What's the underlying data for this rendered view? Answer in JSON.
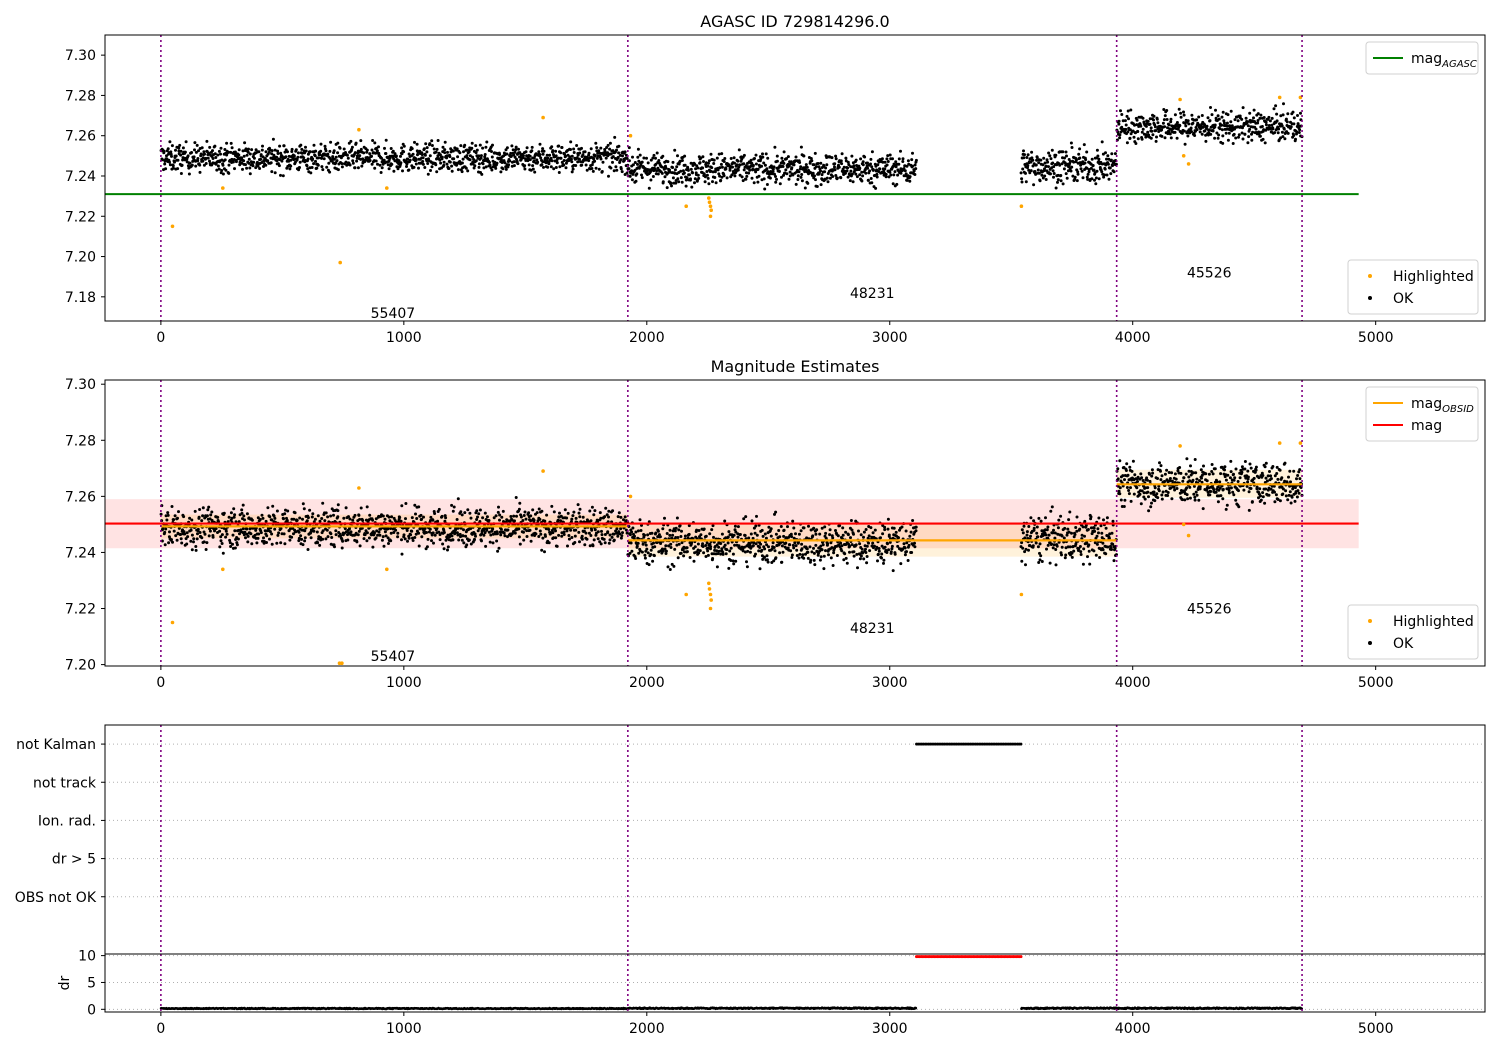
{
  "figure": {
    "background": "#ffffff"
  },
  "colors": {
    "ok": "#000000",
    "highlighted": "#ffa500",
    "mag_agasc": "#008000",
    "mag": "#ff0000",
    "mag_obsid": "#ffa500",
    "obs_boundary": "#800080",
    "dr_flagged": "#ff0000"
  },
  "chart_data": [
    {
      "type": "scatter",
      "title": "AGASC ID 729814296.0",
      "xlim": [
        -230,
        5450
      ],
      "ylim": [
        7.168,
        7.31
      ],
      "xticks": [
        "0",
        "1000",
        "2000",
        "3000",
        "4000",
        "5000"
      ],
      "yticks": [
        "7.18",
        "7.20",
        "7.22",
        "7.24",
        "7.26",
        "7.28",
        "7.30"
      ],
      "observation_boundaries": [
        0,
        1922,
        3934,
        4697
      ],
      "observation_labels": [
        {
          "text": "55407",
          "x": 955,
          "y": 7.172
        },
        {
          "text": "48231",
          "x": 2928,
          "y": 7.182
        },
        {
          "text": "45526",
          "x": 4315,
          "y": 7.192
        }
      ],
      "ok_segments": [
        {
          "x": [
            0,
            1922
          ],
          "mean": 7.249,
          "spread": 0.005
        },
        {
          "x": [
            1922,
            3110
          ],
          "mean": 7.2435,
          "spread": 0.0055
        },
        {
          "x": [
            3540,
            3934
          ],
          "mean": 7.245,
          "spread": 0.006
        },
        {
          "x": [
            3934,
            4697
          ],
          "mean": 7.2645,
          "spread": 0.0055
        }
      ],
      "highlighted_points": [
        [
          48,
          7.215
        ],
        [
          255,
          7.234
        ],
        [
          738,
          7.197
        ],
        [
          815,
          7.263
        ],
        [
          930,
          7.234
        ],
        [
          1573,
          7.269
        ],
        [
          1933,
          7.26
        ],
        [
          2162,
          7.225
        ],
        [
          2255,
          7.229
        ],
        [
          2258,
          7.227
        ],
        [
          2262,
          7.225
        ],
        [
          2265,
          7.223
        ],
        [
          2262,
          7.22
        ],
        [
          3542,
          7.225
        ],
        [
          4195,
          7.278
        ],
        [
          4210,
          7.25
        ],
        [
          4230,
          7.246
        ],
        [
          4605,
          7.279
        ],
        [
          4690,
          7.279
        ]
      ],
      "lines": [
        {
          "name": "mag_AGASC",
          "y": 7.231,
          "x": [
            -230,
            4930
          ],
          "color": "#008000"
        }
      ],
      "legends": [
        {
          "placement": "top-right",
          "entries": [
            {
              "label": "mag",
              "sub": "AGASC",
              "kind": "line",
              "color": "#008000"
            }
          ]
        },
        {
          "placement": "bottom-right",
          "entries": [
            {
              "label": "Highlighted",
              "kind": "dot",
              "color": "#ffa500"
            },
            {
              "label": "OK",
              "kind": "dot",
              "color": "#000000"
            }
          ]
        }
      ]
    },
    {
      "type": "scatter",
      "title": "Magnitude Estimates",
      "xlim": [
        -230,
        5450
      ],
      "ylim": [
        7.1995,
        7.3015
      ],
      "xticks": [
        "0",
        "1000",
        "2000",
        "3000",
        "4000",
        "5000"
      ],
      "yticks": [
        "7.20",
        "7.22",
        "7.24",
        "7.26",
        "7.28",
        "7.30"
      ],
      "observation_boundaries": [
        0,
        1922,
        3934,
        4697
      ],
      "observation_labels": [
        {
          "text": "55407",
          "x": 955,
          "y": 7.203
        },
        {
          "text": "48231",
          "x": 2928,
          "y": 7.213
        },
        {
          "text": "45526",
          "x": 4315,
          "y": 7.22
        }
      ],
      "ok_segments": [
        {
          "x": [
            0,
            1922
          ],
          "mean": 7.249,
          "spread": 0.005
        },
        {
          "x": [
            1922,
            3110
          ],
          "mean": 7.2435,
          "spread": 0.0055
        },
        {
          "x": [
            3540,
            3934
          ],
          "mean": 7.245,
          "spread": 0.006
        },
        {
          "x": [
            3934,
            4697
          ],
          "mean": 7.2645,
          "spread": 0.0055
        }
      ],
      "highlighted_points": [
        [
          48,
          7.215
        ],
        [
          255,
          7.234
        ],
        [
          735,
          7.2005
        ],
        [
          745,
          7.2005
        ],
        [
          815,
          7.263
        ],
        [
          930,
          7.234
        ],
        [
          1573,
          7.269
        ],
        [
          1933,
          7.26
        ],
        [
          2162,
          7.225
        ],
        [
          2255,
          7.229
        ],
        [
          2258,
          7.227
        ],
        [
          2262,
          7.225
        ],
        [
          2265,
          7.223
        ],
        [
          2262,
          7.22
        ],
        [
          3542,
          7.225
        ],
        [
          4195,
          7.278
        ],
        [
          4210,
          7.25
        ],
        [
          4230,
          7.246
        ],
        [
          4605,
          7.279
        ],
        [
          4690,
          7.279
        ]
      ],
      "bands": [
        {
          "x": [
            -230,
            4930
          ],
          "y": [
            7.2415,
            7.259
          ],
          "color": "#ff0000",
          "opacity": 0.11
        },
        {
          "x": [
            0,
            1922
          ],
          "y": [
            7.245,
            7.2535
          ],
          "color": "#ffa500",
          "opacity": 0.14
        },
        {
          "x": [
            1922,
            3934
          ],
          "y": [
            7.2385,
            7.2505
          ],
          "color": "#ffa500",
          "opacity": 0.14
        },
        {
          "x": [
            3934,
            4697
          ],
          "y": [
            7.2595,
            7.2695
          ],
          "color": "#ffa500",
          "opacity": 0.14
        }
      ],
      "lines": [
        {
          "name": "mag",
          "y": 7.2503,
          "x": [
            -230,
            4930
          ],
          "color": "#ff0000"
        },
        {
          "name": "mag_OBSID",
          "y": 7.2493,
          "x": [
            0,
            1922
          ],
          "color": "#ffa500"
        },
        {
          "name": "mag_OBSID",
          "y": 7.2443,
          "x": [
            1922,
            3934
          ],
          "color": "#ffa500"
        },
        {
          "name": "mag_OBSID",
          "y": 7.2643,
          "x": [
            3934,
            4697
          ],
          "color": "#ffa500"
        }
      ],
      "legends": [
        {
          "placement": "top-right",
          "entries": [
            {
              "label": "mag",
              "sub": "OBSID",
              "kind": "line",
              "color": "#ffa500"
            },
            {
              "label": "mag",
              "kind": "line",
              "color": "#ff0000"
            }
          ]
        },
        {
          "placement": "bottom-right",
          "entries": [
            {
              "label": "Highlighted",
              "kind": "dot",
              "color": "#ffa500"
            },
            {
              "label": "OK",
              "kind": "dot",
              "color": "#000000"
            }
          ]
        }
      ]
    },
    {
      "type": "scatter",
      "title": "",
      "xlim": [
        -230,
        5450
      ],
      "ylim": [
        -0.5,
        5.5
      ],
      "xticks": [],
      "yticks": [
        "OBS not OK",
        "dr > 5",
        "Ion. rad.",
        "not track",
        "not Kalman"
      ],
      "observation_boundaries": [
        0,
        1922,
        3934,
        4697
      ],
      "flags": [
        {
          "name": "not Kalman",
          "x_ranges": [
            [
              3110,
              3540
            ]
          ]
        },
        {
          "name": "not track",
          "x_ranges": []
        },
        {
          "name": "Ion. rad.",
          "x_ranges": []
        },
        {
          "name": "dr > 5",
          "x_ranges": []
        },
        {
          "name": "OBS not OK",
          "x_ranges": []
        }
      ]
    },
    {
      "type": "scatter",
      "title": "",
      "ylabel": "dr",
      "xlim": [
        -230,
        5450
      ],
      "ylim": [
        -0.5,
        10.3
      ],
      "xticks": [
        "0",
        "1000",
        "2000",
        "3000",
        "4000",
        "5000"
      ],
      "yticks": [
        "0",
        "5",
        "10"
      ],
      "observation_boundaries": [
        0,
        1922,
        3934,
        4697
      ],
      "ok_segments": [
        {
          "x": [
            0,
            1922
          ],
          "mean": 0.15,
          "spread": 0.15
        },
        {
          "x": [
            1922,
            3110
          ],
          "mean": 0.2,
          "spread": 0.2
        },
        {
          "x": [
            3540,
            4697
          ],
          "mean": 0.2,
          "spread": 0.2
        }
      ],
      "flagged_points": {
        "x": [
          3110,
          3540
        ],
        "y": 9.8
      }
    }
  ]
}
